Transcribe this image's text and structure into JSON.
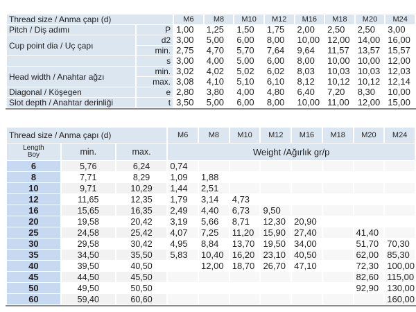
{
  "sizes": [
    "M6",
    "M8",
    "M10",
    "M12",
    "M16",
    "M18",
    "M20",
    "M24"
  ],
  "dimensions_table": {
    "header": "Thread size / Anma çapı (d)",
    "rows": [
      {
        "label": "Pitch / Diş adımı",
        "symbol": "P",
        "values": [
          "1,00",
          "1,25",
          "1,50",
          "1,75",
          "2,00",
          "2,50",
          "2,50",
          "3,00"
        ]
      },
      {
        "label": "Cup point dia / Uç çapı",
        "symbol": "d2",
        "values": [
          "3,00",
          "5,00",
          "6,00",
          "8,00",
          "10,00",
          "12,00",
          "14,00",
          "16,00"
        ]
      },
      {
        "label": "",
        "symbol": "min.",
        "values": [
          "2,75",
          "4,70",
          "5,70",
          "7,64",
          "9,64",
          "11,57",
          "13,57",
          "15,57"
        ]
      },
      {
        "label": "",
        "symbol": "s",
        "values": [
          "3,00",
          "4,00",
          "5,00",
          "6,00",
          "8,00",
          "10,00",
          "10,00",
          "12,00"
        ]
      },
      {
        "label": "Head width / Anahtar ağzı",
        "symbol": "min.",
        "values": [
          "3,02",
          "4,02",
          "5,02",
          "6,02",
          "8,03",
          "10,03",
          "10,03",
          "12,03"
        ]
      },
      {
        "label": "",
        "symbol": "max.",
        "values": [
          "3,08",
          "4,10",
          "5,10",
          "6,10",
          "8,12",
          "10,12",
          "10,12",
          "12,14"
        ]
      },
      {
        "label": "Diagonal / Köşegen",
        "symbol": "e",
        "values": [
          "2,80",
          "3,80",
          "4,00",
          "4,80",
          "6,40",
          "7,20",
          "8,30",
          "10,00"
        ]
      },
      {
        "label": "Slot depth / Anahtar derinliği",
        "symbol": "t",
        "values": [
          "3,50",
          "5,00",
          "6,00",
          "8,00",
          "10,00",
          "11,00",
          "12,00",
          "15,00"
        ]
      }
    ]
  },
  "weight_table": {
    "header": "Thread size / Anma çapı (d)",
    "length_label_1": "Length",
    "length_label_2": "Boy",
    "min_label": "min.",
    "max_label": "max.",
    "weight_label": "Weight /Ağırlık gr/p",
    "rows": [
      {
        "length": "6",
        "min": "5,76",
        "max": "6,24",
        "values": [
          "0,74",
          "",
          "",
          "",
          "",
          "",
          "",
          ""
        ]
      },
      {
        "length": "8",
        "min": "7,71",
        "max": "8,29",
        "values": [
          "1,09",
          "1,88",
          "",
          "",
          "",
          "",
          "",
          ""
        ]
      },
      {
        "length": "10",
        "min": "9,71",
        "max": "10,29",
        "values": [
          "1,44",
          "2,51",
          "",
          "",
          "",
          "",
          "",
          ""
        ]
      },
      {
        "length": "12",
        "min": "11,65",
        "max": "12,35",
        "values": [
          "1,79",
          "3,14",
          "4,73",
          "",
          "",
          "",
          "",
          ""
        ]
      },
      {
        "length": "16",
        "min": "15,65",
        "max": "16,35",
        "values": [
          "2,49",
          "4,40",
          "6,73",
          "9,50",
          "",
          "",
          "",
          ""
        ]
      },
      {
        "length": "20",
        "min": "19,58",
        "max": "20,42",
        "values": [
          "3,19",
          "5,66",
          "8,71",
          "12,30",
          "20,90",
          "",
          "",
          ""
        ]
      },
      {
        "length": "25",
        "min": "24,58",
        "max": "25,42",
        "values": [
          "4,07",
          "7,25",
          "11,20",
          "15,90",
          "27,40",
          "",
          "41,40",
          ""
        ]
      },
      {
        "length": "30",
        "min": "29,58",
        "max": "30,42",
        "values": [
          "4,95",
          "8,84",
          "13,70",
          "19,50",
          "34,00",
          "",
          "51,70",
          "70,30"
        ]
      },
      {
        "length": "35",
        "min": "34,50",
        "max": "35,50",
        "values": [
          "5,83",
          "10,40",
          "16,20",
          "23,10",
          "40,50",
          "",
          "62,00",
          "85,30"
        ]
      },
      {
        "length": "40",
        "min": "39,50",
        "max": "40,50",
        "values": [
          "",
          "12,00",
          "18,70",
          "26,70",
          "47,10",
          "",
          "72,30",
          "100,00"
        ]
      },
      {
        "length": "45",
        "min": "44,50",
        "max": "45,50",
        "values": [
          "",
          "",
          "",
          "",
          "",
          "",
          "82,60",
          "115,00"
        ]
      },
      {
        "length": "50",
        "min": "49,50",
        "max": "50,50",
        "values": [
          "",
          "",
          "",
          "",
          "",
          "",
          "92,90",
          "130,00"
        ]
      },
      {
        "length": "60",
        "min": "59,40",
        "max": "60,60",
        "values": [
          "",
          "",
          "",
          "",
          "",
          "",
          "",
          "160,00"
        ]
      }
    ]
  }
}
